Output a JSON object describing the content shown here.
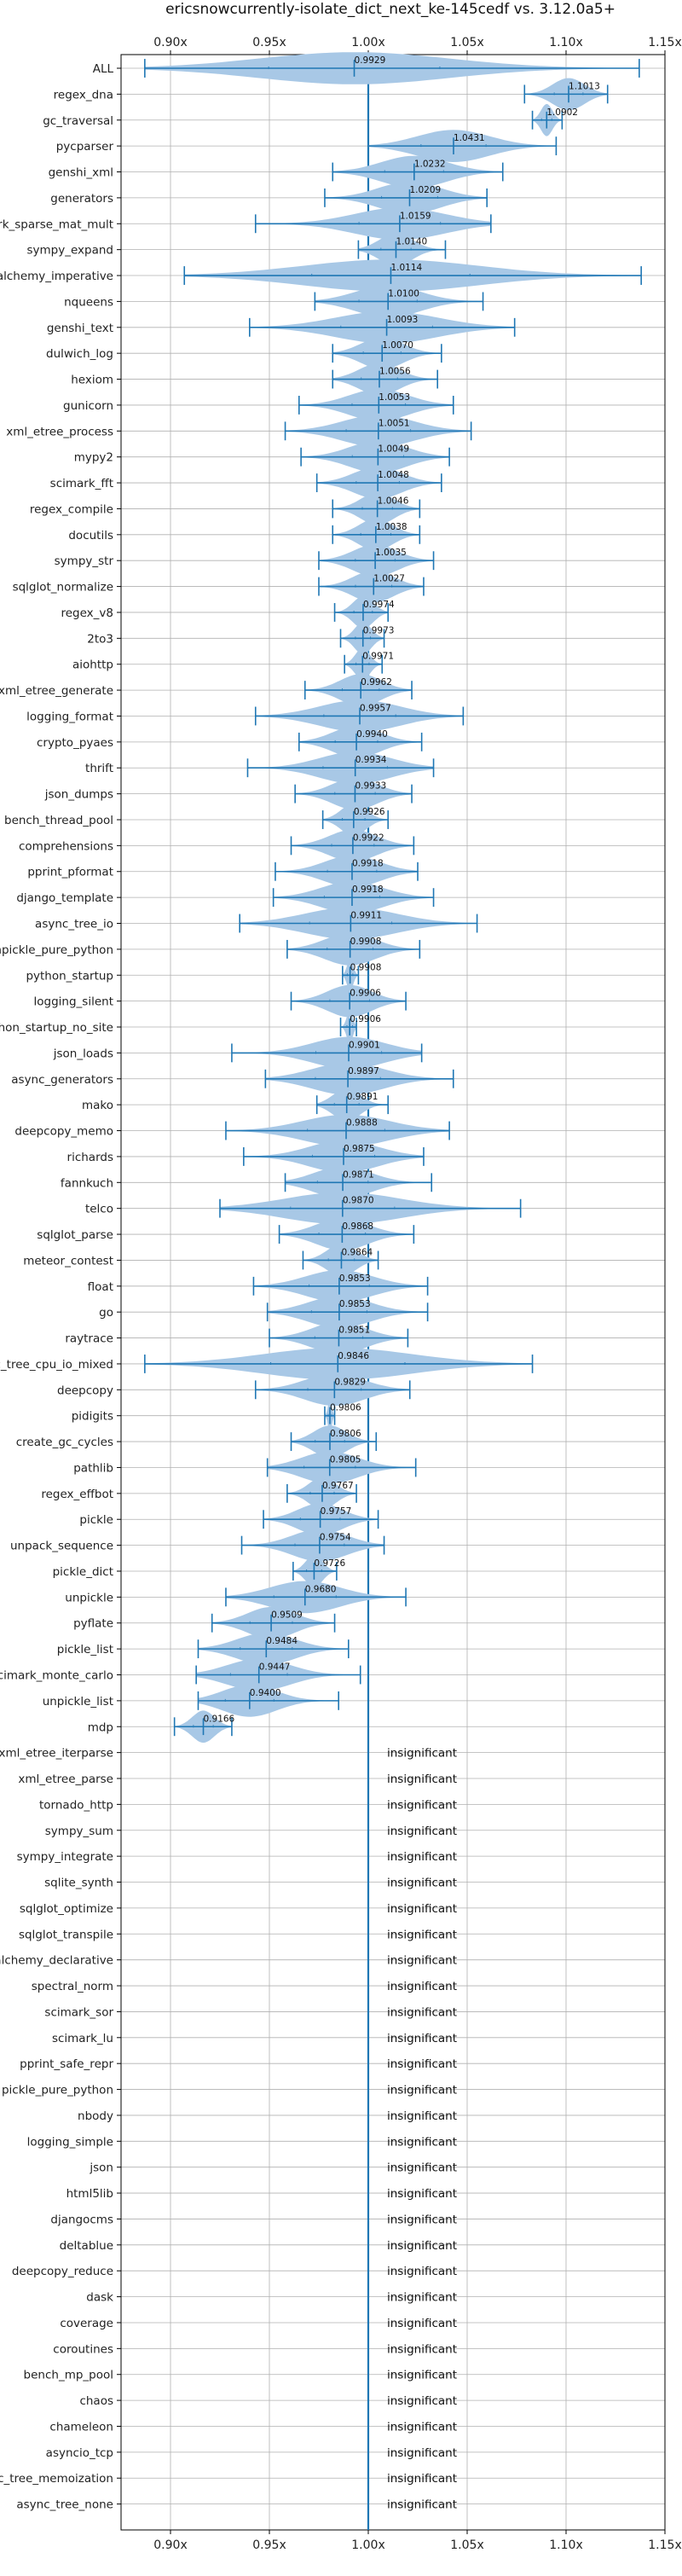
{
  "chart_data": {
    "type": "violin",
    "title": "ericsnowcurrently-isolate_dict_next_ke-145cedf vs. 3.12.0a5+",
    "xlim": [
      0.875,
      1.15
    ],
    "xticks": [
      0.9,
      0.95,
      1.0,
      1.05,
      1.1,
      1.15
    ],
    "xtick_labels": [
      "0.90x",
      "0.95x",
      "1.00x",
      "1.05x",
      "1.10x",
      "1.15x"
    ],
    "reference_line": 1.0,
    "grid": true,
    "colors": {
      "violin": "#a8c8e6",
      "line": "#1f77b4"
    },
    "insignificant_label": "insignificant",
    "benchmarks": [
      {
        "name": "ALL",
        "mean": 0.9929,
        "min": 0.887,
        "max": 1.137
      },
      {
        "name": "regex_dna",
        "mean": 1.1013,
        "min": 1.079,
        "max": 1.121
      },
      {
        "name": "gc_traversal",
        "mean": 1.0902,
        "min": 1.083,
        "max": 1.098
      },
      {
        "name": "pycparser",
        "mean": 1.0431,
        "min": 1.0,
        "max": 1.095
      },
      {
        "name": "genshi_xml",
        "mean": 1.0232,
        "min": 0.982,
        "max": 1.068
      },
      {
        "name": "generators",
        "mean": 1.0209,
        "min": 0.978,
        "max": 1.06
      },
      {
        "name": "scimark_sparse_mat_mult",
        "mean": 1.0159,
        "min": 0.943,
        "max": 1.062
      },
      {
        "name": "sympy_expand",
        "mean": 1.014,
        "min": 0.995,
        "max": 1.039
      },
      {
        "name": "sqlalchemy_imperative",
        "mean": 1.0114,
        "min": 0.907,
        "max": 1.138
      },
      {
        "name": "nqueens",
        "mean": 1.01,
        "min": 0.973,
        "max": 1.058
      },
      {
        "name": "genshi_text",
        "mean": 1.0093,
        "min": 0.94,
        "max": 1.074
      },
      {
        "name": "dulwich_log",
        "mean": 1.007,
        "min": 0.982,
        "max": 1.037
      },
      {
        "name": "hexiom",
        "mean": 1.0056,
        "min": 0.982,
        "max": 1.035
      },
      {
        "name": "gunicorn",
        "mean": 1.0053,
        "min": 0.965,
        "max": 1.043
      },
      {
        "name": "xml_etree_process",
        "mean": 1.0051,
        "min": 0.958,
        "max": 1.052
      },
      {
        "name": "mypy2",
        "mean": 1.0049,
        "min": 0.966,
        "max": 1.041
      },
      {
        "name": "scimark_fft",
        "mean": 1.0048,
        "min": 0.974,
        "max": 1.037
      },
      {
        "name": "regex_compile",
        "mean": 1.0046,
        "min": 0.982,
        "max": 1.026
      },
      {
        "name": "docutils",
        "mean": 1.0038,
        "min": 0.982,
        "max": 1.026
      },
      {
        "name": "sympy_str",
        "mean": 1.0035,
        "min": 0.975,
        "max": 1.033
      },
      {
        "name": "sqlglot_normalize",
        "mean": 1.0027,
        "min": 0.975,
        "max": 1.028
      },
      {
        "name": "regex_v8",
        "mean": 0.9974,
        "min": 0.983,
        "max": 1.01
      },
      {
        "name": "2to3",
        "mean": 0.9973,
        "min": 0.986,
        "max": 1.008
      },
      {
        "name": "aiohttp",
        "mean": 0.9971,
        "min": 0.988,
        "max": 1.007
      },
      {
        "name": "xml_etree_generate",
        "mean": 0.9962,
        "min": 0.968,
        "max": 1.022
      },
      {
        "name": "logging_format",
        "mean": 0.9957,
        "min": 0.943,
        "max": 1.048
      },
      {
        "name": "crypto_pyaes",
        "mean": 0.994,
        "min": 0.965,
        "max": 1.027
      },
      {
        "name": "thrift",
        "mean": 0.9934,
        "min": 0.939,
        "max": 1.033
      },
      {
        "name": "json_dumps",
        "mean": 0.9933,
        "min": 0.963,
        "max": 1.022
      },
      {
        "name": "bench_thread_pool",
        "mean": 0.9926,
        "min": 0.977,
        "max": 1.01
      },
      {
        "name": "comprehensions",
        "mean": 0.9922,
        "min": 0.961,
        "max": 1.023
      },
      {
        "name": "pprint_pformat",
        "mean": 0.9918,
        "min": 0.953,
        "max": 1.025
      },
      {
        "name": "django_template",
        "mean": 0.9918,
        "min": 0.952,
        "max": 1.033
      },
      {
        "name": "async_tree_io",
        "mean": 0.9911,
        "min": 0.935,
        "max": 1.055
      },
      {
        "name": "unpickle_pure_python",
        "mean": 0.9908,
        "min": 0.959,
        "max": 1.026
      },
      {
        "name": "python_startup",
        "mean": 0.9908,
        "min": 0.987,
        "max": 0.995
      },
      {
        "name": "logging_silent",
        "mean": 0.9906,
        "min": 0.961,
        "max": 1.019
      },
      {
        "name": "python_startup_no_site",
        "mean": 0.9906,
        "min": 0.986,
        "max": 0.994
      },
      {
        "name": "json_loads",
        "mean": 0.9901,
        "min": 0.931,
        "max": 1.027
      },
      {
        "name": "async_generators",
        "mean": 0.9897,
        "min": 0.948,
        "max": 1.043
      },
      {
        "name": "mako",
        "mean": 0.9891,
        "min": 0.974,
        "max": 1.01
      },
      {
        "name": "deepcopy_memo",
        "mean": 0.9888,
        "min": 0.928,
        "max": 1.041
      },
      {
        "name": "richards",
        "mean": 0.9875,
        "min": 0.937,
        "max": 1.028
      },
      {
        "name": "fannkuch",
        "mean": 0.9871,
        "min": 0.958,
        "max": 1.032
      },
      {
        "name": "telco",
        "mean": 0.987,
        "min": 0.925,
        "max": 1.077
      },
      {
        "name": "sqlglot_parse",
        "mean": 0.9868,
        "min": 0.955,
        "max": 1.023
      },
      {
        "name": "meteor_contest",
        "mean": 0.9864,
        "min": 0.967,
        "max": 1.005
      },
      {
        "name": "float",
        "mean": 0.9853,
        "min": 0.942,
        "max": 1.03
      },
      {
        "name": "go",
        "mean": 0.9853,
        "min": 0.949,
        "max": 1.03
      },
      {
        "name": "raytrace",
        "mean": 0.9851,
        "min": 0.95,
        "max": 1.02
      },
      {
        "name": "async_tree_cpu_io_mixed",
        "mean": 0.9846,
        "min": 0.887,
        "max": 1.083
      },
      {
        "name": "deepcopy",
        "mean": 0.9829,
        "min": 0.943,
        "max": 1.021
      },
      {
        "name": "pidigits",
        "mean": 0.9806,
        "min": 0.978,
        "max": 0.983
      },
      {
        "name": "create_gc_cycles",
        "mean": 0.9806,
        "min": 0.961,
        "max": 1.004
      },
      {
        "name": "pathlib",
        "mean": 0.9805,
        "min": 0.949,
        "max": 1.024
      },
      {
        "name": "regex_effbot",
        "mean": 0.9767,
        "min": 0.959,
        "max": 0.994
      },
      {
        "name": "pickle",
        "mean": 0.9757,
        "min": 0.947,
        "max": 1.005
      },
      {
        "name": "unpack_sequence",
        "mean": 0.9754,
        "min": 0.936,
        "max": 1.008
      },
      {
        "name": "pickle_dict",
        "mean": 0.9726,
        "min": 0.962,
        "max": 0.984
      },
      {
        "name": "unpickle",
        "mean": 0.968,
        "min": 0.928,
        "max": 1.019
      },
      {
        "name": "pyflate",
        "mean": 0.9509,
        "min": 0.921,
        "max": 0.983
      },
      {
        "name": "pickle_list",
        "mean": 0.9484,
        "min": 0.914,
        "max": 0.99
      },
      {
        "name": "scimark_monte_carlo",
        "mean": 0.9447,
        "min": 0.913,
        "max": 0.996
      },
      {
        "name": "unpickle_list",
        "mean": 0.94,
        "min": 0.914,
        "max": 0.985
      },
      {
        "name": "mdp",
        "mean": 0.9166,
        "min": 0.902,
        "max": 0.931
      },
      {
        "name": "xml_etree_iterparse",
        "insignificant": true
      },
      {
        "name": "xml_etree_parse",
        "insignificant": true
      },
      {
        "name": "tornado_http",
        "insignificant": true
      },
      {
        "name": "sympy_sum",
        "insignificant": true
      },
      {
        "name": "sympy_integrate",
        "insignificant": true
      },
      {
        "name": "sqlite_synth",
        "insignificant": true
      },
      {
        "name": "sqlglot_optimize",
        "insignificant": true
      },
      {
        "name": "sqlglot_transpile",
        "insignificant": true
      },
      {
        "name": "sqlalchemy_declarative",
        "insignificant": true
      },
      {
        "name": "spectral_norm",
        "insignificant": true
      },
      {
        "name": "scimark_sor",
        "insignificant": true
      },
      {
        "name": "scimark_lu",
        "insignificant": true
      },
      {
        "name": "pprint_safe_repr",
        "insignificant": true
      },
      {
        "name": "pickle_pure_python",
        "insignificant": true
      },
      {
        "name": "nbody",
        "insignificant": true
      },
      {
        "name": "logging_simple",
        "insignificant": true
      },
      {
        "name": "json",
        "insignificant": true
      },
      {
        "name": "html5lib",
        "insignificant": true
      },
      {
        "name": "djangocms",
        "insignificant": true
      },
      {
        "name": "deltablue",
        "insignificant": true
      },
      {
        "name": "deepcopy_reduce",
        "insignificant": true
      },
      {
        "name": "dask",
        "insignificant": true
      },
      {
        "name": "coverage",
        "insignificant": true
      },
      {
        "name": "coroutines",
        "insignificant": true
      },
      {
        "name": "bench_mp_pool",
        "insignificant": true
      },
      {
        "name": "chaos",
        "insignificant": true
      },
      {
        "name": "chameleon",
        "insignificant": true
      },
      {
        "name": "asyncio_tcp",
        "insignificant": true
      },
      {
        "name": "async_tree_memoization",
        "insignificant": true
      },
      {
        "name": "async_tree_none",
        "insignificant": true
      }
    ]
  }
}
